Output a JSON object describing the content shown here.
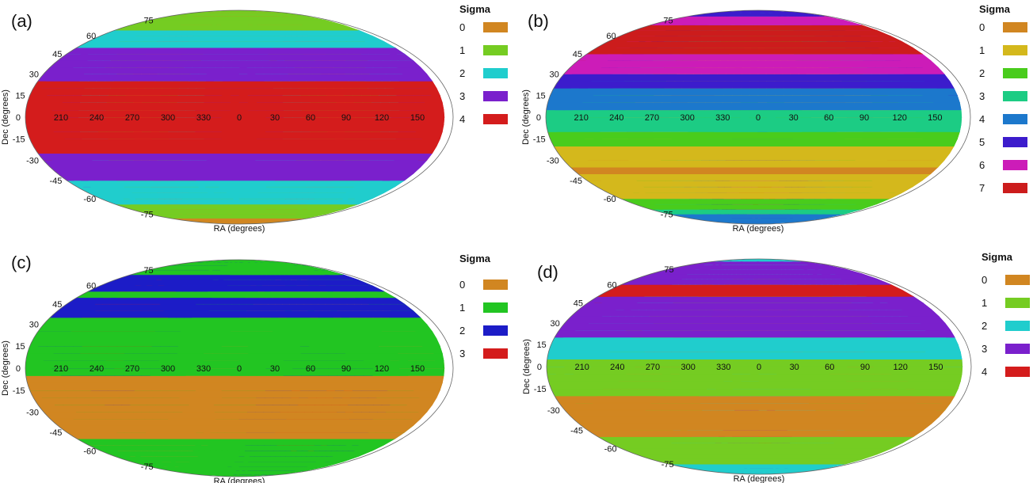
{
  "panels": [
    {
      "label": "(a)",
      "chart_data": {
        "type": "heatmap",
        "projection": "mollweide",
        "xlabel": "RA (degrees)",
        "ylabel": "Dec (degrees)",
        "ra_ticks": [
          "210",
          "240",
          "270",
          "300",
          "330",
          "0",
          "30",
          "60",
          "90",
          "120",
          "150"
        ],
        "dec_ticks": [
          "75",
          "60",
          "45",
          "30",
          "15",
          "0",
          "-15",
          "-30",
          "-45",
          "-60",
          "-75"
        ],
        "legend_title": "Sigma",
        "levels": [
          "0",
          "1",
          "2",
          "3",
          "4"
        ],
        "level_colors": [
          "#d18621",
          "#75cc22",
          "#20cdcd",
          "#7a20cc",
          "#d41c1c"
        ],
        "pattern": {
          "pole_ra": 0,
          "pole_dec": 0,
          "scale": 4.6,
          "ring_angle": 85
        }
      }
    },
    {
      "label": "(b)",
      "chart_data": {
        "type": "heatmap",
        "projection": "mollweide",
        "xlabel": "RA (degrees)",
        "ylabel": "Dec (degrees)",
        "ra_ticks": [
          "210",
          "240",
          "270",
          "300",
          "330",
          "0",
          "30",
          "60",
          "90",
          "120",
          "150"
        ],
        "dec_ticks": [
          "75",
          "60",
          "45",
          "30",
          "15",
          "0",
          "-15",
          "-30",
          "-45",
          "-60",
          "-75"
        ],
        "legend_title": "Sigma",
        "levels": [
          "0",
          "1",
          "2",
          "3",
          "4",
          "5",
          "6",
          "7"
        ],
        "level_colors": [
          "#d18621",
          "#d4b81c",
          "#49cc1c",
          "#1ccc84",
          "#1c78cc",
          "#3c1ccc",
          "#cc1cb8",
          "#cc1c1c"
        ],
        "pattern": {
          "pole_ra": 0,
          "pole_dec": -55,
          "scale": 7.4,
          "ring_angle": 88
        }
      }
    },
    {
      "label": "(c)",
      "chart_data": {
        "type": "heatmap",
        "projection": "mollweide",
        "xlabel": "RA (degrees)",
        "ylabel": "Dec (degrees)",
        "ra_ticks": [
          "210",
          "240",
          "270",
          "300",
          "330",
          "0",
          "30",
          "60",
          "90",
          "120",
          "150"
        ],
        "dec_ticks": [
          "75",
          "60",
          "45",
          "30",
          "15",
          "0",
          "-15",
          "-30",
          "-45",
          "-60",
          "-75"
        ],
        "legend_title": "Sigma",
        "levels": [
          "0",
          "1",
          "2",
          "3"
        ],
        "level_colors": [
          "#d18621",
          "#22c522",
          "#1c1cc7",
          "#d41c1c"
        ],
        "pattern": {
          "pole_ra": 70,
          "pole_dec": -35,
          "scale": 3.6,
          "ring_angle": 88
        }
      }
    },
    {
      "label": "(d)",
      "chart_data": {
        "type": "heatmap",
        "projection": "mollweide",
        "xlabel": "RA (degrees)",
        "ylabel": "Dec (degrees)",
        "ra_ticks": [
          "210",
          "240",
          "270",
          "300",
          "330",
          "0",
          "30",
          "60",
          "90",
          "120",
          "150"
        ],
        "dec_ticks": [
          "75",
          "60",
          "45",
          "30",
          "15",
          "0",
          "-15",
          "-30",
          "-45",
          "-60",
          "-75"
        ],
        "legend_title": "Sigma",
        "levels": [
          "0",
          "1",
          "2",
          "3",
          "4"
        ],
        "level_colors": [
          "#d18621",
          "#75cc22",
          "#20cdcd",
          "#7a20cc",
          "#d41c1c"
        ],
        "pattern": {
          "pole_ra": 0,
          "pole_dec": -55,
          "scale": 3.7,
          "ring_angle": 88
        }
      }
    }
  ]
}
